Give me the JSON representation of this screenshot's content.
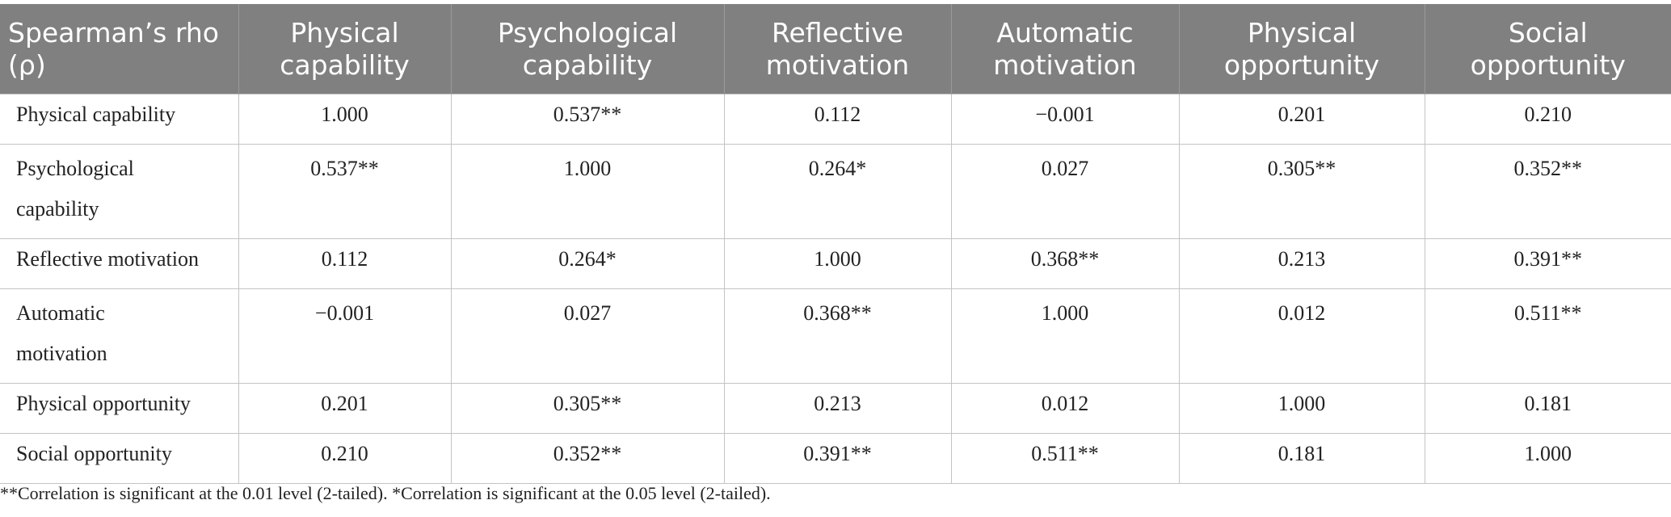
{
  "table": {
    "headers": [
      "Spearman’s rho (ρ)",
      "Physical capability",
      "Psychological capability",
      "Reflective motivation",
      "Automatic motivation",
      "Physical opportunity",
      "Social opportunity"
    ],
    "rows": [
      {
        "label": "Physical capability",
        "values": [
          "1.000",
          "0.537**",
          "0.112",
          "−0.001",
          "0.201",
          "0.210"
        ]
      },
      {
        "label": "Psychological capability",
        "values": [
          "0.537**",
          "1.000",
          "0.264*",
          "0.027",
          "0.305**",
          "0.352**"
        ]
      },
      {
        "label": "Reflective motivation",
        "values": [
          "0.112",
          "0.264*",
          "1.000",
          "0.368**",
          "0.213",
          "0.391**"
        ]
      },
      {
        "label": "Automatic motivation",
        "values": [
          "−0.001",
          "0.027",
          "0.368**",
          "1.000",
          "0.012",
          "0.511**"
        ]
      },
      {
        "label": "Physical opportunity",
        "values": [
          "0.201",
          "0.305**",
          "0.213",
          "0.012",
          "1.000",
          "0.181"
        ]
      },
      {
        "label": "Social opportunity",
        "values": [
          "0.210",
          "0.352**",
          "0.391**",
          "0.511**",
          "0.181",
          "1.000"
        ]
      }
    ]
  },
  "footnote": "**Correlation is significant at the 0.01 level (2-tailed). *Correlation is significant at the 0.05 level (2-tailed).",
  "colors": {
    "header_bg": "#808080",
    "header_text": "#ffffff",
    "border": "#c4c4c4"
  }
}
